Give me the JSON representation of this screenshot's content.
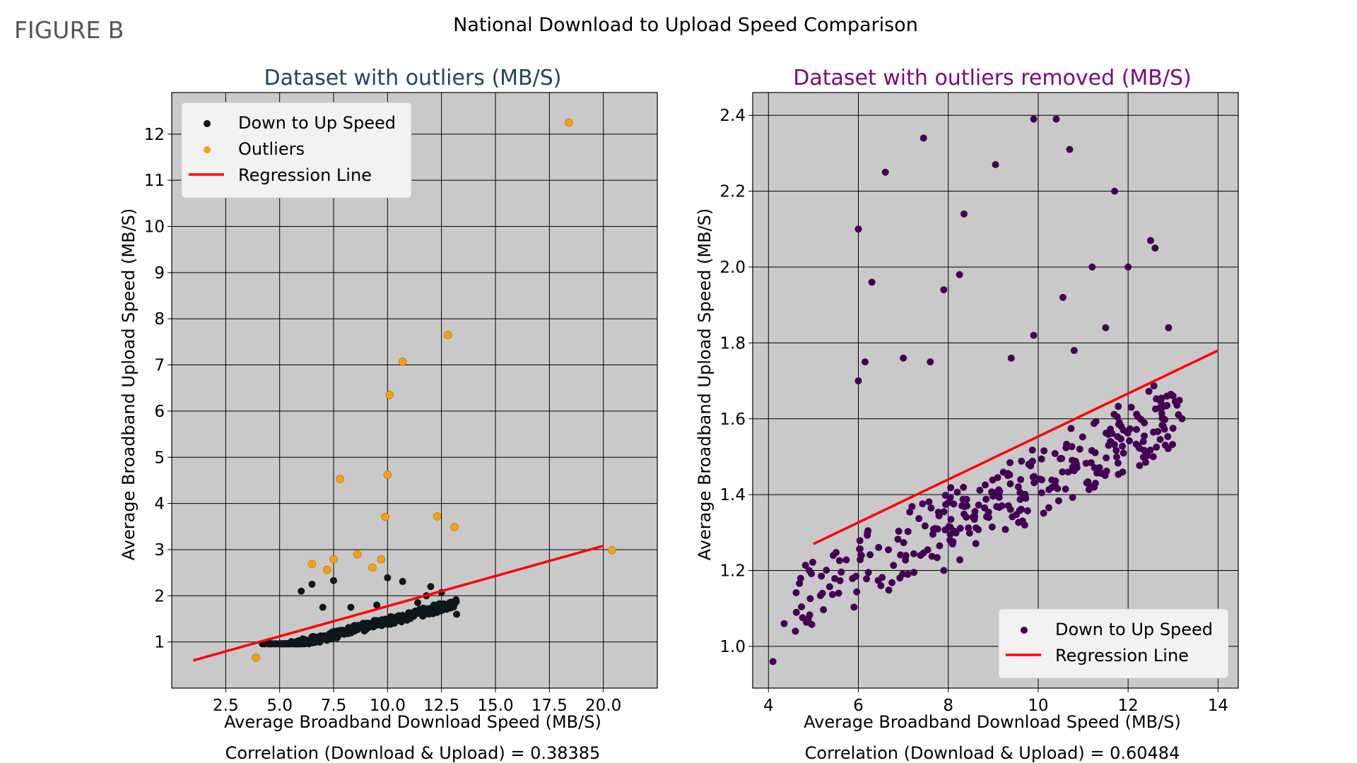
{
  "figure_label": "FIGURE B",
  "suptitle": "National Download to Upload Speed Comparison",
  "colors": {
    "background": "#c9c9c9",
    "grid": "#000000",
    "left_title": "#23435e",
    "right_title": "#7b0a7b",
    "points_left": "#0d1719",
    "outliers": "#f5a00f",
    "points_right": "#440154",
    "regression": "#ff0000"
  },
  "chart_data": [
    {
      "type": "scatter",
      "title": "Dataset with outliers (MB/S)",
      "xlabel": "Average Broadband Download Speed (MB/S)",
      "ylabel": "Average Broadband Upload Speed (MB/S)",
      "footer": "Correlation (Download & Upload) = 0.38385",
      "xlim": [
        0,
        22.5
      ],
      "ylim": [
        0,
        12.9
      ],
      "xticks": [
        "2.5",
        "5.0",
        "7.5",
        "10.0",
        "12.5",
        "15.0",
        "17.5",
        "20.0"
      ],
      "yticks": [
        "1",
        "2",
        "3",
        "4",
        "5",
        "6",
        "7",
        "8",
        "9",
        "10",
        "11",
        "12"
      ],
      "grid": true,
      "legend_position": "upper-left",
      "legend": [
        "Down to Up Speed",
        "Outliers",
        "Regression Line"
      ],
      "regression": {
        "x": [
          1.0,
          20.0
        ],
        "y": [
          0.6,
          3.08
        ]
      },
      "series": [
        {
          "name": "Down to Up Speed",
          "cluster": {
            "x_range": [
              4.2,
              13.2
            ],
            "y_range": [
              0.96,
              2.39
            ]
          },
          "points": [
            [
              6.5,
              2.25
            ],
            [
              6.0,
              2.1
            ],
            [
              7.5,
              2.33
            ],
            [
              10.0,
              2.39
            ],
            [
              10.7,
              2.31
            ],
            [
              12.0,
              2.2
            ],
            [
              7.0,
              1.75
            ],
            [
              8.3,
              1.75
            ],
            [
              11.4,
              1.85
            ],
            [
              9.5,
              1.8
            ],
            [
              13.0,
              1.84
            ],
            [
              12.5,
              2.07
            ],
            [
              11.8,
              2.0
            ],
            [
              13.2,
              1.6
            ],
            [
              4.2,
              0.96
            ]
          ]
        },
        {
          "name": "Outliers",
          "points": [
            [
              18.4,
              12.25
            ],
            [
              12.8,
              7.65
            ],
            [
              10.7,
              7.07
            ],
            [
              10.1,
              6.35
            ],
            [
              7.8,
              4.53
            ],
            [
              10.0,
              4.62
            ],
            [
              9.9,
              3.71
            ],
            [
              12.3,
              3.72
            ],
            [
              13.1,
              3.49
            ],
            [
              6.5,
              2.69
            ],
            [
              7.2,
              2.56
            ],
            [
              7.5,
              2.79
            ],
            [
              8.6,
              2.9
            ],
            [
              9.3,
              2.61
            ],
            [
              9.7,
              2.79
            ],
            [
              20.4,
              2.99
            ],
            [
              3.9,
              0.66
            ]
          ]
        }
      ]
    },
    {
      "type": "scatter",
      "title": "Dataset with outliers removed (MB/S)",
      "xlabel": "Average Broadband Download Speed (MB/S)",
      "ylabel": "Average Broadband Upload Speed (MB/S)",
      "footer": "Correlation (Download & Upload) = 0.60484",
      "xlim": [
        3.65,
        14.45
      ],
      "ylim": [
        0.89,
        2.46
      ],
      "xticks": [
        "4",
        "6",
        "8",
        "10",
        "12",
        "14"
      ],
      "yticks": [
        "1.0",
        "1.2",
        "1.4",
        "1.6",
        "1.8",
        "2.0",
        "2.2",
        "2.4"
      ],
      "grid": true,
      "legend_position": "lower-right",
      "legend": [
        "Down to Up Speed",
        "Regression Line"
      ],
      "regression": {
        "x": [
          5.0,
          14.0
        ],
        "y": [
          1.27,
          1.78
        ]
      },
      "series": [
        {
          "name": "Down to Up Speed",
          "cluster": {
            "x_range": [
              4.6,
              13.2
            ],
            "y_range": [
              1.0,
              1.7
            ]
          },
          "points": [
            [
              4.1,
              0.96
            ],
            [
              4.35,
              1.06
            ],
            [
              4.6,
              1.04
            ],
            [
              7.45,
              2.34
            ],
            [
              6.6,
              2.25
            ],
            [
              9.05,
              2.27
            ],
            [
              9.9,
              2.39
            ],
            [
              10.4,
              2.39
            ],
            [
              10.7,
              2.31
            ],
            [
              11.7,
              2.2
            ],
            [
              6.0,
              2.1
            ],
            [
              8.35,
              2.14
            ],
            [
              12.5,
              2.07
            ],
            [
              12.6,
              2.05
            ],
            [
              11.2,
              2.0
            ],
            [
              12.0,
              2.0
            ],
            [
              8.25,
              1.98
            ],
            [
              6.3,
              1.96
            ],
            [
              7.9,
              1.94
            ],
            [
              10.55,
              1.92
            ],
            [
              11.5,
              1.84
            ],
            [
              12.9,
              1.84
            ],
            [
              9.9,
              1.82
            ],
            [
              10.8,
              1.78
            ],
            [
              7.0,
              1.76
            ],
            [
              6.15,
              1.75
            ],
            [
              7.6,
              1.75
            ],
            [
              9.4,
              1.76
            ],
            [
              6.0,
              1.7
            ],
            [
              13.0,
              1.66
            ],
            [
              13.2,
              1.6
            ],
            [
              7.9,
              1.2
            ],
            [
              9.7,
              1.32
            ],
            [
              8.9,
              1.34
            ],
            [
              7.1,
              1.19
            ],
            [
              6.5,
              1.16
            ],
            [
              5.2,
              1.14
            ]
          ]
        }
      ]
    }
  ]
}
